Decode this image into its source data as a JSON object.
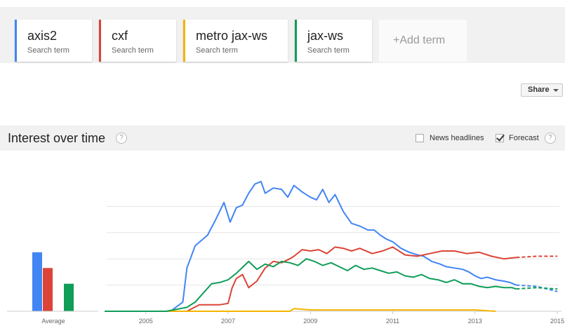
{
  "search_terms": [
    {
      "name": "axis2",
      "subtitle": "Search term",
      "color": "#4285f4"
    },
    {
      "name": "cxf",
      "subtitle": "Search term",
      "color": "#db4437"
    },
    {
      "name": "metro jax-ws",
      "subtitle": "Search term",
      "color": "#f4b400"
    },
    {
      "name": "jax-ws",
      "subtitle": "Search term",
      "color": "#0f9d58"
    }
  ],
  "add_term_label": "+Add term",
  "share_label": "Share",
  "section": {
    "title": "Interest over time",
    "help_icon": "?",
    "news_headlines_label": "News headlines",
    "news_headlines_checked": false,
    "forecast_label": "Forecast",
    "forecast_checked": true
  },
  "chart_data": {
    "type": "line",
    "x_tick_labels": [
      "2005",
      "2007",
      "2009",
      "2011",
      "2013",
      "2015"
    ],
    "average_label": "Average",
    "averages": [
      {
        "term": "axis2",
        "value": 45
      },
      {
        "term": "cxf",
        "value": 33
      },
      {
        "term": "metro jax-ws",
        "value": 0
      },
      {
        "term": "jax-ws",
        "value": 21
      }
    ],
    "ylim": [
      0,
      100
    ],
    "grid": true,
    "forecast_start": 2014.0,
    "series": [
      {
        "name": "axis2",
        "color": "#4285f4",
        "points": [
          [
            2004.0,
            0
          ],
          [
            2005.6,
            0
          ],
          [
            2005.9,
            7
          ],
          [
            2006.0,
            33
          ],
          [
            2006.2,
            50
          ],
          [
            2006.5,
            58
          ],
          [
            2006.7,
            70
          ],
          [
            2006.9,
            83
          ],
          [
            2007.05,
            68
          ],
          [
            2007.2,
            79
          ],
          [
            2007.35,
            81
          ],
          [
            2007.5,
            90
          ],
          [
            2007.65,
            97
          ],
          [
            2007.8,
            99
          ],
          [
            2007.9,
            90
          ],
          [
            2008.1,
            94
          ],
          [
            2008.3,
            93
          ],
          [
            2008.45,
            87
          ],
          [
            2008.6,
            96
          ],
          [
            2008.8,
            91
          ],
          [
            2009.0,
            87
          ],
          [
            2009.15,
            85
          ],
          [
            2009.3,
            93
          ],
          [
            2009.45,
            83
          ],
          [
            2009.6,
            89
          ],
          [
            2009.8,
            76
          ],
          [
            2010.0,
            67
          ],
          [
            2010.2,
            65
          ],
          [
            2010.4,
            62
          ],
          [
            2010.55,
            62
          ],
          [
            2010.7,
            58
          ],
          [
            2010.85,
            55
          ],
          [
            2011.0,
            53
          ],
          [
            2011.2,
            48
          ],
          [
            2011.4,
            45
          ],
          [
            2011.6,
            43
          ],
          [
            2011.75,
            42
          ],
          [
            2011.95,
            38
          ],
          [
            2012.15,
            36
          ],
          [
            2012.3,
            34
          ],
          [
            2012.5,
            33
          ],
          [
            2012.7,
            32
          ],
          [
            2012.85,
            30
          ],
          [
            2013.0,
            27
          ],
          [
            2013.15,
            25
          ],
          [
            2013.3,
            26
          ],
          [
            2013.5,
            24
          ],
          [
            2013.7,
            23
          ],
          [
            2013.85,
            22
          ],
          [
            2014.0,
            20
          ],
          [
            2014.5,
            19
          ],
          [
            2015.0,
            15
          ]
        ]
      },
      {
        "name": "cxf",
        "color": "#db4437",
        "points": [
          [
            2004.0,
            0
          ],
          [
            2006.0,
            0
          ],
          [
            2006.3,
            5
          ],
          [
            2006.8,
            5
          ],
          [
            2007.0,
            6
          ],
          [
            2007.1,
            18
          ],
          [
            2007.2,
            25
          ],
          [
            2007.35,
            28
          ],
          [
            2007.5,
            18
          ],
          [
            2007.7,
            23
          ],
          [
            2007.9,
            33
          ],
          [
            2008.1,
            38
          ],
          [
            2008.3,
            37
          ],
          [
            2008.5,
            40
          ],
          [
            2008.6,
            42
          ],
          [
            2008.8,
            47
          ],
          [
            2009.0,
            46
          ],
          [
            2009.2,
            47
          ],
          [
            2009.4,
            44
          ],
          [
            2009.6,
            49
          ],
          [
            2009.8,
            48
          ],
          [
            2010.0,
            46
          ],
          [
            2010.2,
            48
          ],
          [
            2010.5,
            44
          ],
          [
            2010.75,
            46
          ],
          [
            2011.0,
            49
          ],
          [
            2011.3,
            43
          ],
          [
            2011.6,
            42
          ],
          [
            2011.9,
            44
          ],
          [
            2012.2,
            46
          ],
          [
            2012.5,
            46
          ],
          [
            2012.8,
            44
          ],
          [
            2013.1,
            45
          ],
          [
            2013.4,
            42
          ],
          [
            2013.7,
            40
          ],
          [
            2014.0,
            41
          ],
          [
            2014.5,
            42
          ],
          [
            2015.0,
            42
          ]
        ]
      },
      {
        "name": "metro jax-ws",
        "color": "#f4b400",
        "points": [
          [
            2004.0,
            0
          ],
          [
            2008.5,
            0
          ],
          [
            2008.6,
            2
          ],
          [
            2009.0,
            1
          ],
          [
            2010.0,
            1
          ],
          [
            2011.0,
            1
          ],
          [
            2012.0,
            1
          ],
          [
            2013.0,
            1
          ],
          [
            2013.5,
            0
          ],
          [
            2015.0,
            0
          ]
        ]
      },
      {
        "name": "jax-ws",
        "color": "#0f9d58",
        "points": [
          [
            2004.0,
            0
          ],
          [
            2005.5,
            0
          ],
          [
            2006.0,
            3
          ],
          [
            2006.2,
            7
          ],
          [
            2006.4,
            14
          ],
          [
            2006.6,
            21
          ],
          [
            2006.8,
            22
          ],
          [
            2007.0,
            24
          ],
          [
            2007.2,
            29
          ],
          [
            2007.4,
            35
          ],
          [
            2007.5,
            38
          ],
          [
            2007.7,
            32
          ],
          [
            2007.9,
            36
          ],
          [
            2008.1,
            34
          ],
          [
            2008.3,
            38
          ],
          [
            2008.5,
            37
          ],
          [
            2008.7,
            35
          ],
          [
            2008.9,
            40
          ],
          [
            2009.1,
            38
          ],
          [
            2009.3,
            35
          ],
          [
            2009.5,
            37
          ],
          [
            2009.7,
            34
          ],
          [
            2009.9,
            31
          ],
          [
            2010.1,
            35
          ],
          [
            2010.3,
            32
          ],
          [
            2010.5,
            33
          ],
          [
            2010.7,
            31
          ],
          [
            2010.9,
            29
          ],
          [
            2011.1,
            30
          ],
          [
            2011.3,
            27
          ],
          [
            2011.5,
            26
          ],
          [
            2011.7,
            28
          ],
          [
            2011.9,
            25
          ],
          [
            2012.1,
            24
          ],
          [
            2012.3,
            22
          ],
          [
            2012.5,
            24
          ],
          [
            2012.7,
            21
          ],
          [
            2012.9,
            21
          ],
          [
            2013.1,
            19
          ],
          [
            2013.3,
            18
          ],
          [
            2013.5,
            19
          ],
          [
            2013.7,
            18
          ],
          [
            2013.9,
            18
          ],
          [
            2014.0,
            17
          ],
          [
            2014.5,
            18
          ],
          [
            2015.0,
            17
          ]
        ]
      }
    ]
  }
}
